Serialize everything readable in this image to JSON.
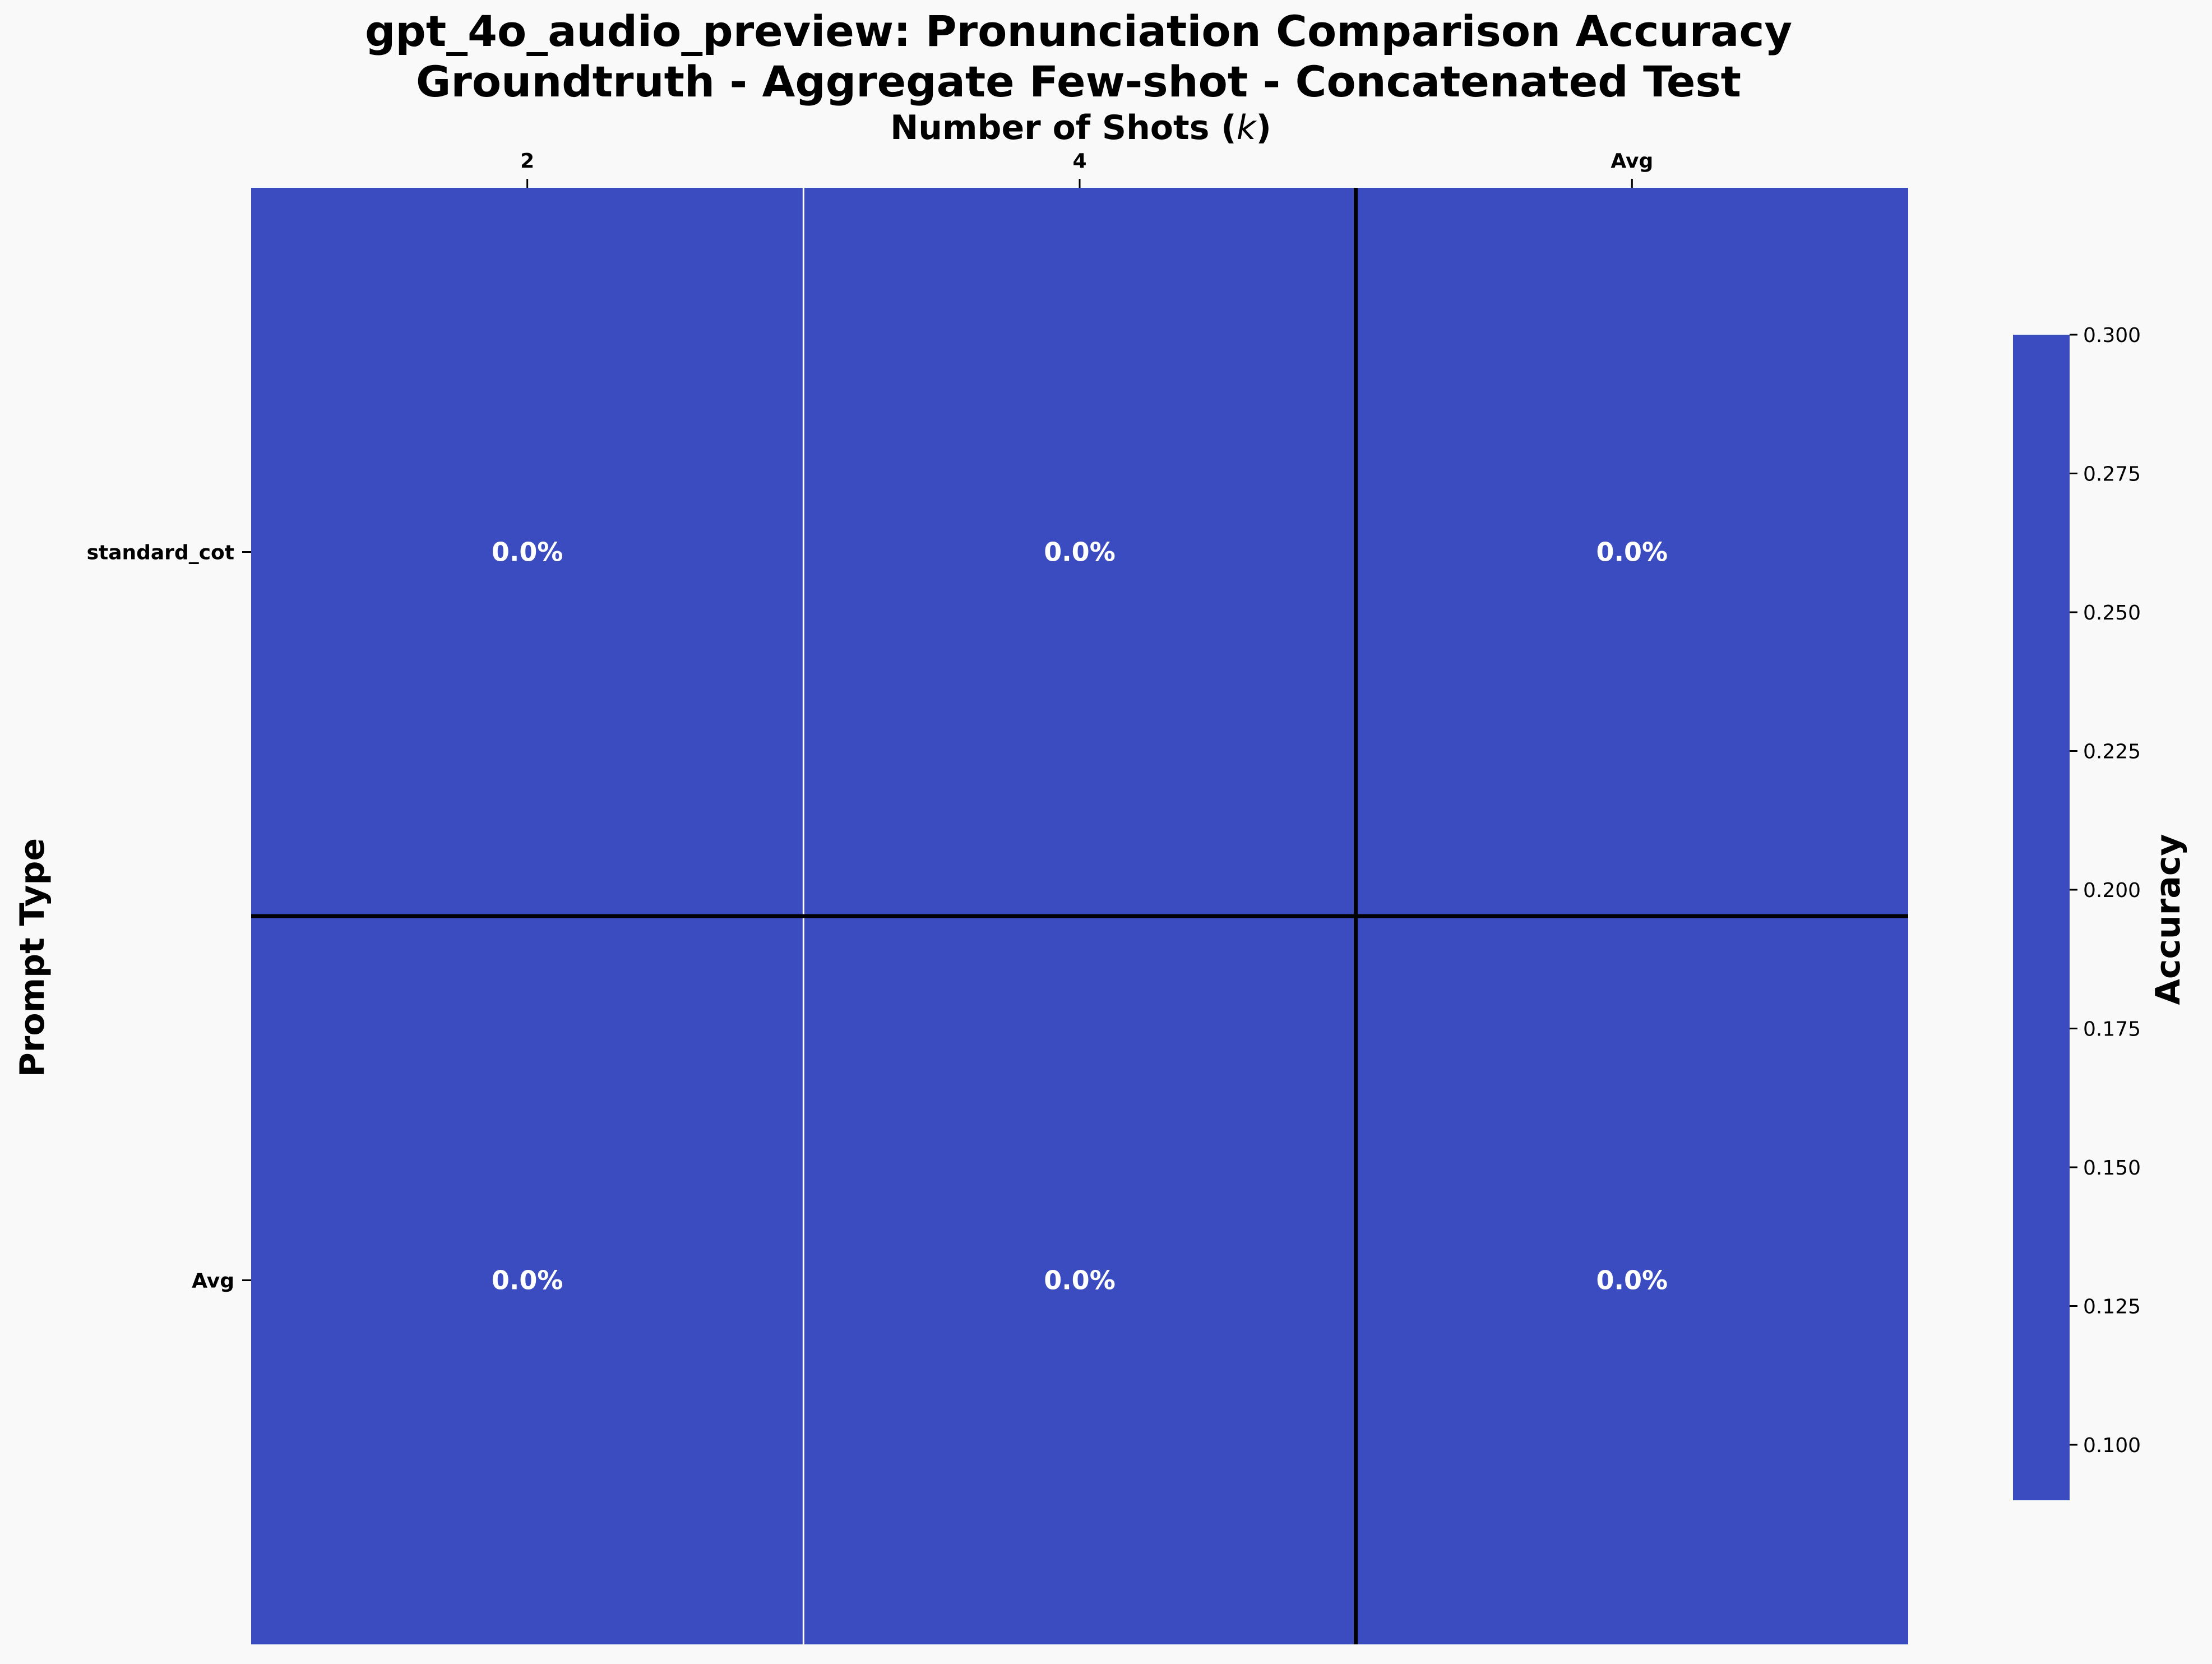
{
  "chart_data": {
    "type": "heatmap",
    "title": "gpt_4o_audio_preview: Pronunciation Comparison Accuracy",
    "subtitle": "Groundtruth - Aggregate Few-shot - Concatenated Test",
    "xlabel_prefix": "Number of Shots (",
    "xlabel_var": "k",
    "xlabel_suffix": ")",
    "ylabel": "Prompt Type",
    "x_categories": [
      "2",
      "4",
      "Avg"
    ],
    "y_categories": [
      "standard_cot",
      "Avg"
    ],
    "values": [
      [
        0.0,
        0.0,
        0.0
      ],
      [
        0.0,
        0.0,
        0.0
      ]
    ],
    "cell_labels": [
      [
        "0.0%",
        "0.0%",
        "0.0%"
      ],
      [
        "0.0%",
        "0.0%",
        "0.0%"
      ]
    ],
    "colorbar": {
      "label": "Accuracy",
      "range": [
        0.09,
        0.3
      ],
      "ticks": [
        "0.100",
        "0.125",
        "0.150",
        "0.175",
        "0.200",
        "0.225",
        "0.250",
        "0.275",
        "0.300"
      ],
      "cmap": "coolwarm"
    },
    "cell_color": "#3b4cc0",
    "separator_color": "#000000",
    "grid_line_color": "#ffffff"
  }
}
